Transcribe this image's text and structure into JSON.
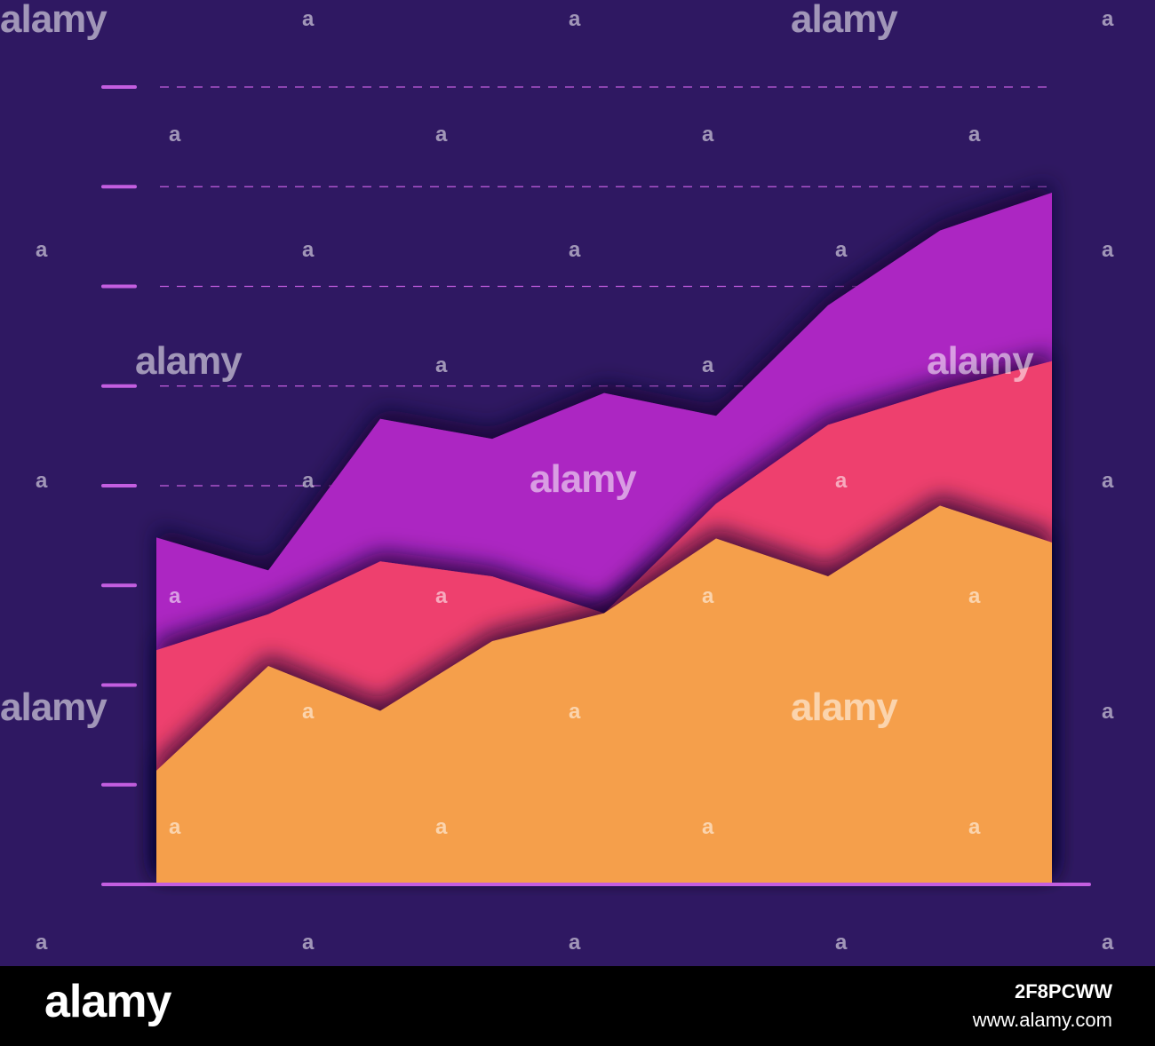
{
  "colors": {
    "background": "#2f1862",
    "axis": "#c35ee0",
    "series": [
      "#f59f4c",
      "#ee3f6e",
      "#ac27c2"
    ]
  },
  "chart_data": {
    "type": "area",
    "stacked": true,
    "title": "",
    "xlabel": "",
    "ylabel": "",
    "grid": "dashed horizontal",
    "legend": "none",
    "x": [
      0,
      1,
      2,
      3,
      4,
      5,
      6,
      7,
      8
    ],
    "ylim": [
      0,
      8
    ],
    "y_ticks": [
      1,
      2,
      3,
      4,
      5,
      6,
      7,
      8
    ],
    "series": [
      {
        "values": [
          1.14,
          2.19,
          1.74,
          2.44,
          2.72,
          3.47,
          3.09,
          3.8,
          3.43
        ]
      },
      {
        "values": [
          1.21,
          0.52,
          1.5,
          0.65,
          0.0,
          0.35,
          1.52,
          1.16,
          1.82
        ]
      },
      {
        "values": [
          1.13,
          0.44,
          1.43,
          1.38,
          2.21,
          0.88,
          1.2,
          1.6,
          1.69
        ]
      }
    ]
  },
  "watermark": {
    "word": "alamy",
    "mark": "a"
  },
  "footer": {
    "logo": "alamy",
    "image_id": "2F8PCWW",
    "url": "www.alamy.com"
  }
}
